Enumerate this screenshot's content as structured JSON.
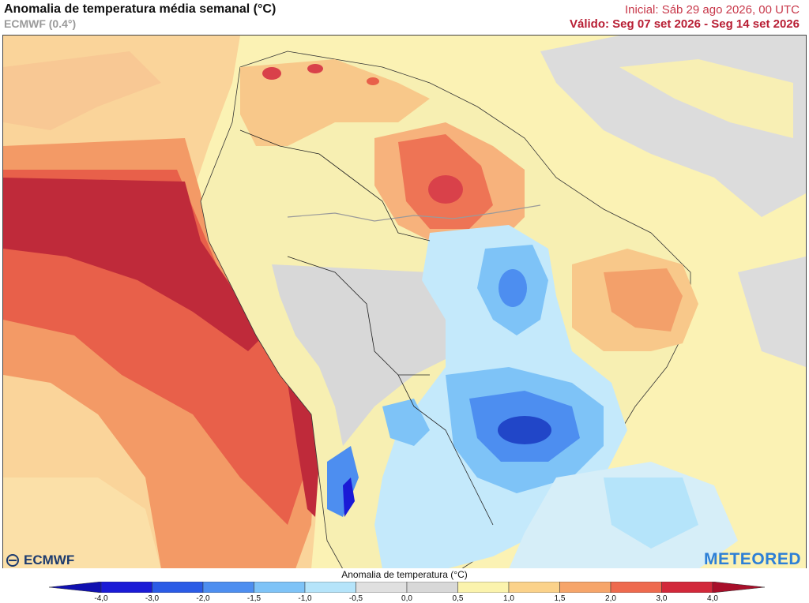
{
  "header": {
    "title": "Anomalia de temperatura média semanal (°C)",
    "subtitle": "ECMWF (0.4°)",
    "initial": "Inicial: Sáb 29 ago 2026, 00 UTC",
    "valid": "Válido: Seg 07 set 2026 - Seg 14 set 2026"
  },
  "brand": {
    "left": "ECMWF",
    "right": "METEORED"
  },
  "legend": {
    "title": "Anomalia de temperatura (°C)",
    "ticks": [
      "-4,0",
      "-3,0",
      "-2,0",
      "-1,5",
      "-1,0",
      "-0,5",
      "0,0",
      "0,5",
      "1,0",
      "1,5",
      "2,0",
      "3,0",
      "4,0"
    ],
    "colors": [
      "#1a1ad6",
      "#2a5be6",
      "#4d8ef0",
      "#7ec3f7",
      "#b5e4fa",
      "#e0e0e0",
      "#d8d8d8",
      "#fbf3ad",
      "#fbd28a",
      "#f6a56a",
      "#ee6a4e",
      "#d2283a"
    ]
  },
  "map": {
    "ocean_base": "#fbf0b0",
    "land_base": "#f6eeb0"
  }
}
